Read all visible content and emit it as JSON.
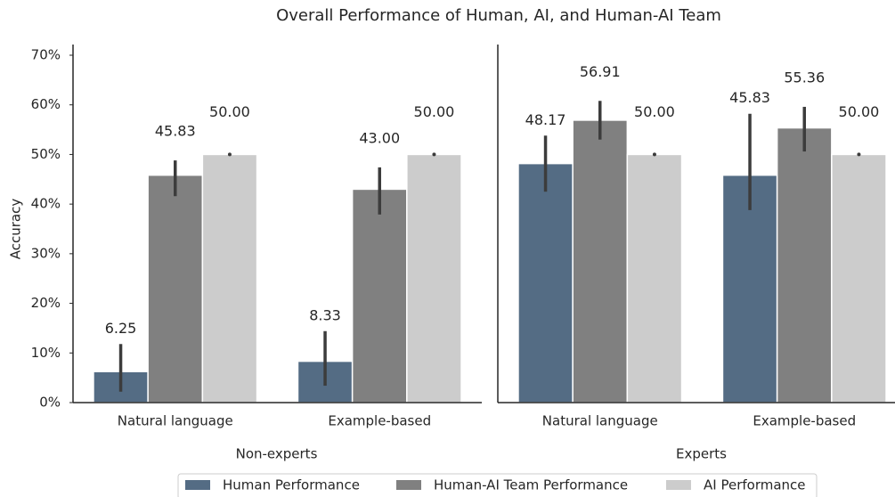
{
  "chart_data": {
    "type": "bar",
    "title": "Overall Performance of Human, AI, and Human-AI Team",
    "ylabel": "Accuracy",
    "ylim": [
      0,
      70
    ],
    "yticks": [
      {
        "value": 0,
        "label": "0%"
      },
      {
        "value": 10,
        "label": "10%"
      },
      {
        "value": 20,
        "label": "20%"
      },
      {
        "value": 30,
        "label": "30%"
      },
      {
        "value": 40,
        "label": "40%"
      },
      {
        "value": 50,
        "label": "50%"
      },
      {
        "value": 60,
        "label": "60%"
      },
      {
        "value": 70,
        "label": "70%"
      }
    ],
    "legend": "bottom",
    "series": [
      {
        "name": "Human Performance",
        "color": "#546c84"
      },
      {
        "name": "Human-AI Team Performance",
        "color": "#808080"
      },
      {
        "name": "AI Performance",
        "color": "#cccccc"
      }
    ],
    "panels": [
      {
        "xlabel": "Non-experts",
        "categories": [
          "Natural language",
          "Example-based"
        ],
        "series": [
          {
            "values": [
              6.25,
              8.33
            ],
            "value_labels": [
              "6.25",
              "8.33"
            ],
            "ci": [
              [
                2.2,
                11.8
              ],
              [
                3.4,
                14.4
              ]
            ]
          },
          {
            "values": [
              45.83,
              43
            ],
            "value_labels": [
              "45.83",
              "43.00"
            ],
            "ci": [
              [
                41.6,
                48.8
              ],
              [
                37.9,
                47.4
              ]
            ]
          },
          {
            "values": [
              50,
              50
            ],
            "value_labels": [
              "50.00",
              "50.00"
            ],
            "ci": [
              [
                50,
                50
              ],
              [
                50,
                50
              ]
            ]
          }
        ]
      },
      {
        "xlabel": "Experts",
        "categories": [
          "Natural language",
          "Example-based"
        ],
        "series": [
          {
            "values": [
              48.17,
              45.83
            ],
            "value_labels": [
              "48.17",
              "45.83"
            ],
            "ci": [
              [
                42.5,
                53.8
              ],
              [
                38.8,
                58.2
              ]
            ]
          },
          {
            "values": [
              56.91,
              55.36
            ],
            "value_labels": [
              "56.91",
              "55.36"
            ],
            "ci": [
              [
                53,
                60.8
              ],
              [
                50.6,
                59.6
              ]
            ]
          },
          {
            "values": [
              50,
              50
            ],
            "value_labels": [
              "50.00",
              "50.00"
            ],
            "ci": [
              [
                50,
                50
              ],
              [
                50,
                50
              ]
            ]
          }
        ]
      }
    ]
  }
}
